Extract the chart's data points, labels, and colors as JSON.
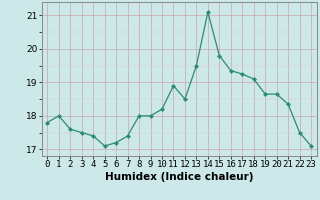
{
  "x": [
    0,
    1,
    2,
    3,
    4,
    5,
    6,
    7,
    8,
    9,
    10,
    11,
    12,
    13,
    14,
    15,
    16,
    17,
    18,
    19,
    20,
    21,
    22,
    23
  ],
  "y": [
    17.8,
    18.0,
    17.6,
    17.5,
    17.4,
    17.1,
    17.2,
    17.4,
    18.0,
    18.0,
    18.2,
    18.9,
    18.5,
    19.5,
    21.1,
    19.8,
    19.35,
    19.25,
    19.1,
    18.65,
    18.65,
    18.35,
    17.5,
    17.1
  ],
  "line_color": "#2e8b72",
  "marker_color": "#2e8b72",
  "bg_color": "#cce8e8",
  "xlabel": "Humidex (Indice chaleur)",
  "ylim": [
    16.8,
    21.4
  ],
  "yticks": [
    17,
    18,
    19,
    20,
    21
  ],
  "xticks": [
    0,
    1,
    2,
    3,
    4,
    5,
    6,
    7,
    8,
    9,
    10,
    11,
    12,
    13,
    14,
    15,
    16,
    17,
    18,
    19,
    20,
    21,
    22,
    23
  ],
  "xlabel_fontsize": 7.5,
  "tick_fontsize": 6.5,
  "major_grid_color": "#c0d0d0",
  "minor_grid_color": "#daeaea"
}
